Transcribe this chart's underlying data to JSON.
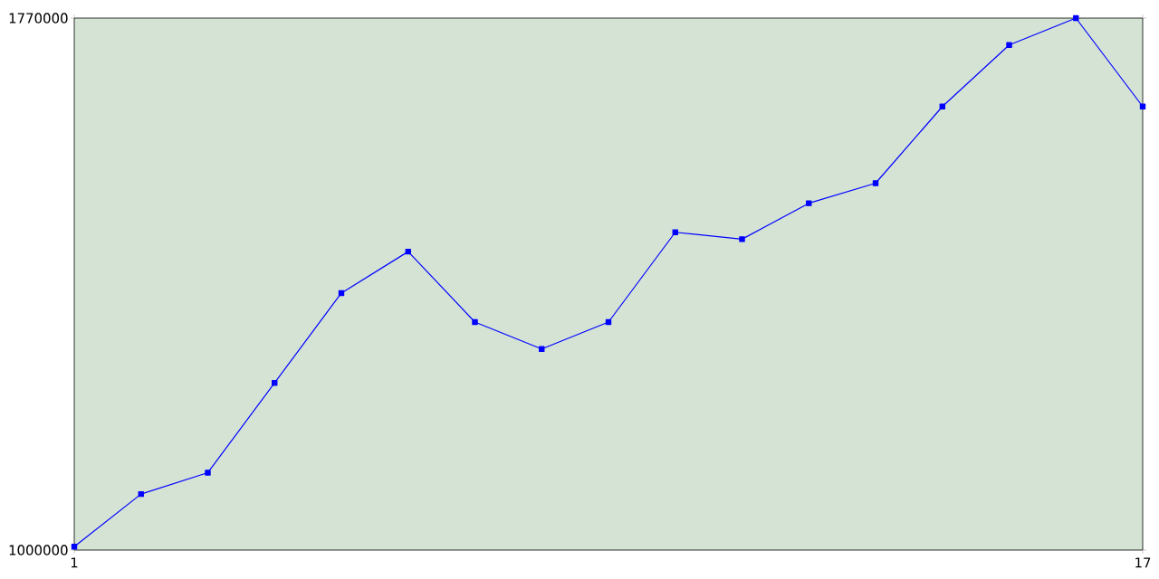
{
  "chart_data": {
    "type": "line",
    "x": [
      1,
      2,
      3,
      4,
      5,
      6,
      7,
      8,
      9,
      10,
      11,
      12,
      13,
      14,
      15,
      16,
      17
    ],
    "values": [
      1005000,
      1081000,
      1112000,
      1242000,
      1372000,
      1432000,
      1330000,
      1291000,
      1330000,
      1460000,
      1450000,
      1502000,
      1531000,
      1642000,
      1731000,
      1770000,
      1642000
    ],
    "color": "#0000ff",
    "xlim": [
      1,
      17
    ],
    "ylim": [
      1000000,
      1770000
    ],
    "xticks": [
      1,
      17
    ],
    "yticks": [
      1000000,
      1770000
    ],
    "marker": "square",
    "line_style": "solid"
  }
}
